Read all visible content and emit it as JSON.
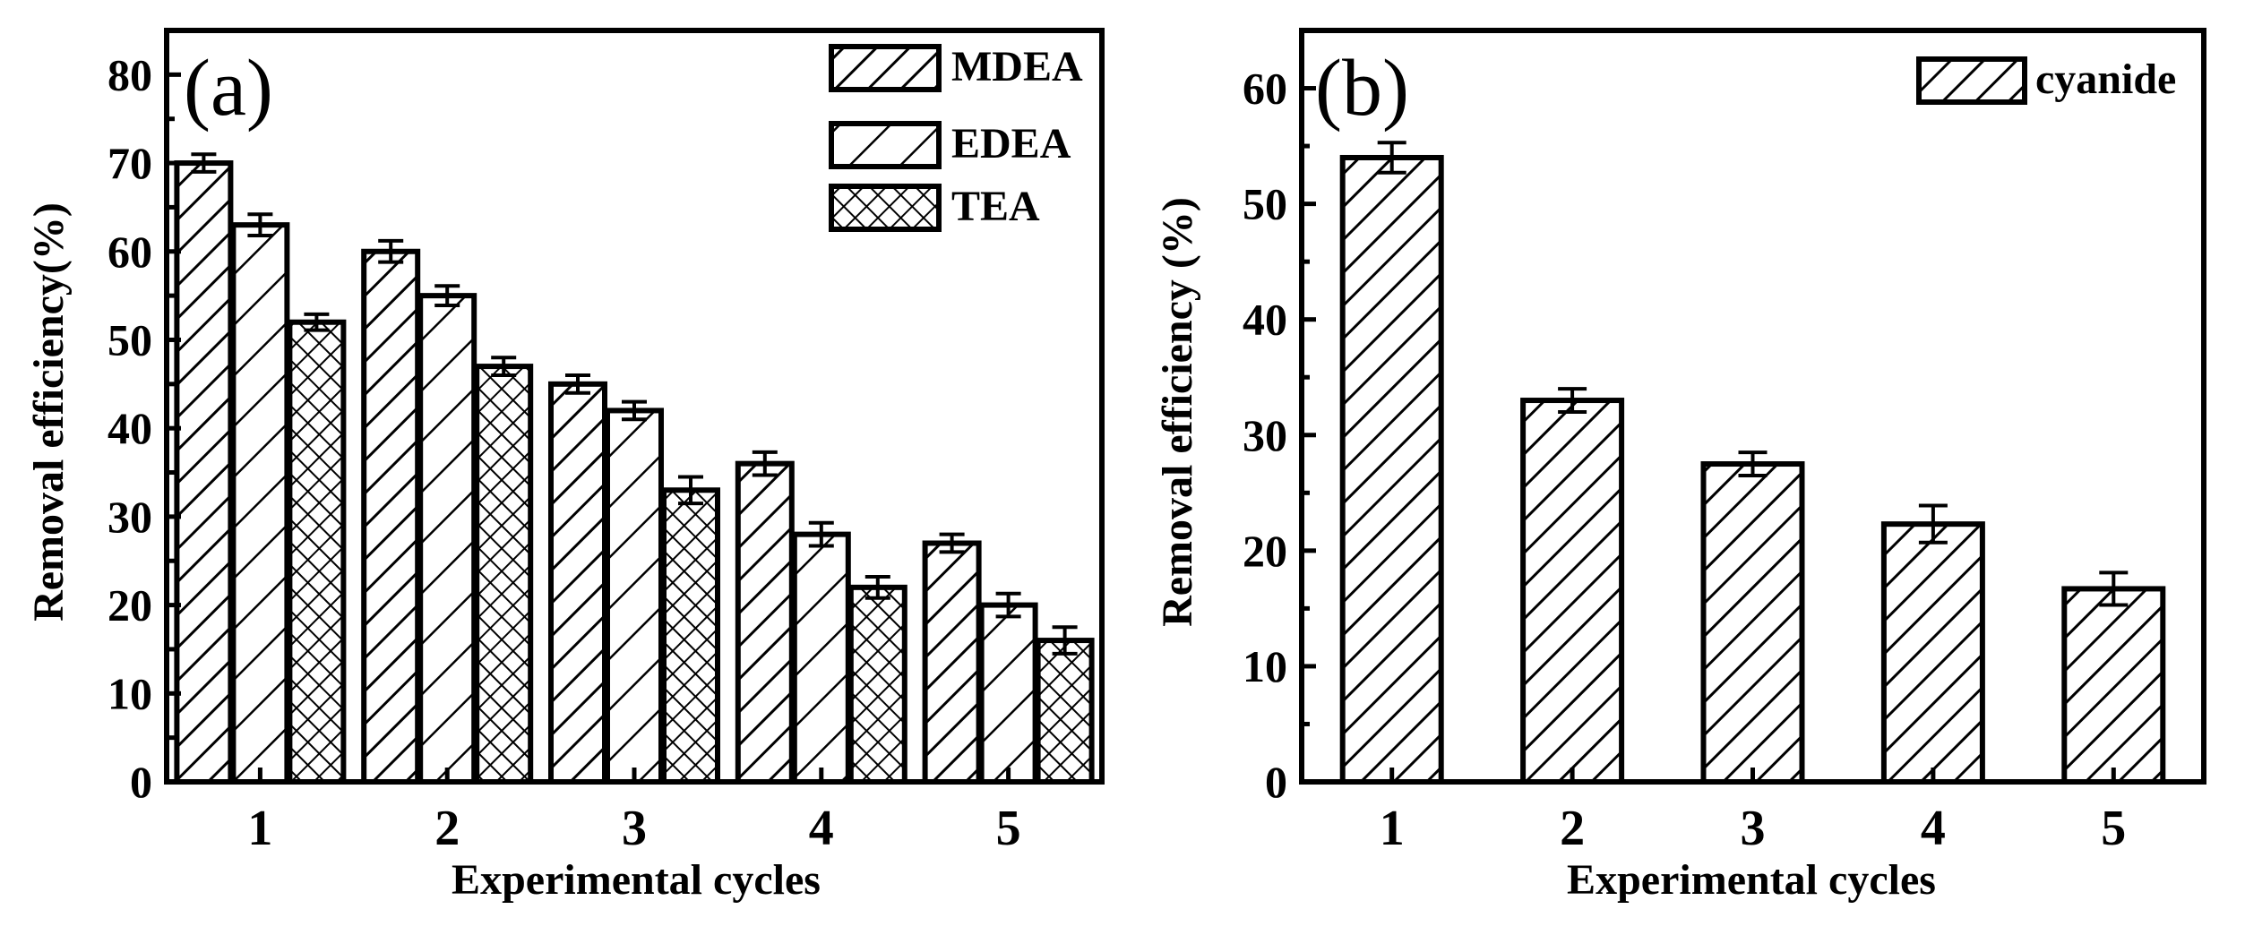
{
  "chart_data": [
    {
      "type": "bar",
      "panel_label": "(a)",
      "title": "",
      "categories": [
        "1",
        "2",
        "3",
        "4",
        "5"
      ],
      "series": [
        {
          "name": "MDEA",
          "pattern": "hatch-wide",
          "values": [
            70,
            60,
            45,
            36,
            27
          ],
          "errors": [
            1.0,
            1.2,
            1.0,
            1.3,
            1.0
          ]
        },
        {
          "name": "EDEA",
          "pattern": "hatch-sparse",
          "values": [
            63,
            55,
            42,
            28,
            20
          ],
          "errors": [
            1.2,
            1.1,
            1.0,
            1.3,
            1.3
          ]
        },
        {
          "name": "TEA",
          "pattern": "crosshatch",
          "values": [
            52,
            47,
            33,
            22,
            16
          ],
          "errors": [
            0.9,
            1.0,
            1.5,
            1.2,
            1.5
          ]
        }
      ],
      "xlabel": "Experimental cycles",
      "ylabel": "Removal efficiency(%)",
      "ylim": [
        0,
        85
      ],
      "yticks": [
        0,
        10,
        20,
        30,
        40,
        50,
        60,
        70,
        80
      ],
      "grid": false,
      "legend": "top-right"
    },
    {
      "type": "bar",
      "panel_label": "(b)",
      "title": "",
      "categories": [
        "1",
        "2",
        "3",
        "4",
        "5"
      ],
      "series": [
        {
          "name": "cyanide",
          "pattern": "hatch-wide",
          "values": [
            54,
            33,
            27.5,
            22.3,
            16.7
          ],
          "errors": [
            1.3,
            1.0,
            1.0,
            1.6,
            1.4
          ]
        }
      ],
      "xlabel": "Experimental cycles",
      "ylabel": "Removal efficiency (%)",
      "ylim": [
        0,
        65
      ],
      "yticks": [
        0,
        10,
        20,
        30,
        40,
        50,
        60
      ],
      "grid": false,
      "legend": "top-right"
    }
  ]
}
